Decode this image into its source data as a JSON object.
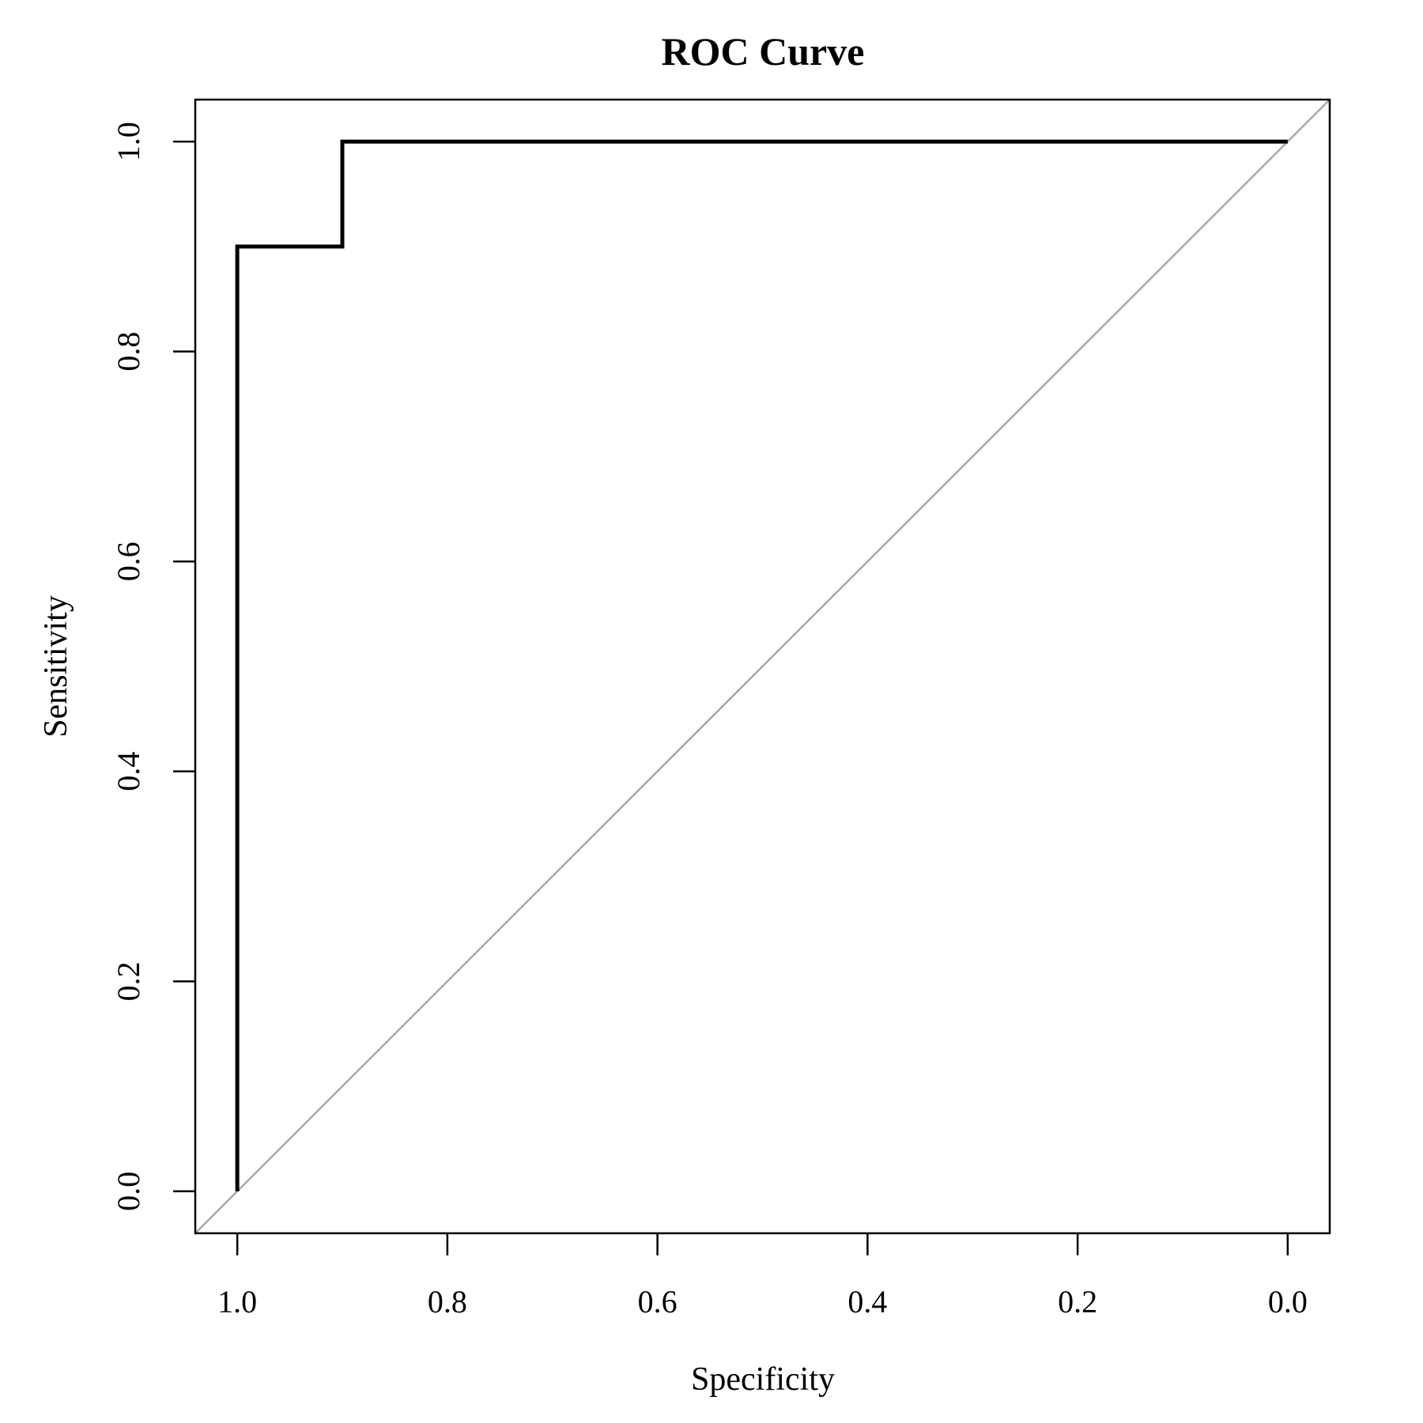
{
  "chart_data": {
    "type": "line",
    "title": "ROC Curve",
    "xlabel": "Specificity",
    "ylabel": "Sensitivity",
    "x_reversed": true,
    "xlim": [
      1.04,
      -0.04
    ],
    "ylim": [
      -0.04,
      1.04
    ],
    "x_ticks": [
      1.0,
      0.8,
      0.6,
      0.4,
      0.2,
      0.0
    ],
    "x_tick_labels": [
      "1.0",
      "0.8",
      "0.6",
      "0.4",
      "0.2",
      "0.0"
    ],
    "y_ticks": [
      0.0,
      0.2,
      0.4,
      0.6,
      0.8,
      1.0
    ],
    "y_tick_labels": [
      "0.0",
      "0.2",
      "0.4",
      "0.6",
      "0.8",
      "1.0"
    ],
    "grid": false,
    "series": [
      {
        "color": "#000000",
        "points": [
          {
            "x": 1.0,
            "y": 0.0
          },
          {
            "x": 1.0,
            "y": 0.9
          },
          {
            "x": 0.9,
            "y": 0.9
          },
          {
            "x": 0.9,
            "y": 1.0
          },
          {
            "x": 0.0,
            "y": 1.0
          }
        ]
      }
    ],
    "reference_line": {
      "color": "#a8a8a8",
      "from": {
        "x": 1.04,
        "y": -0.04
      },
      "to": {
        "x": -0.04,
        "y": 1.04
      }
    }
  }
}
